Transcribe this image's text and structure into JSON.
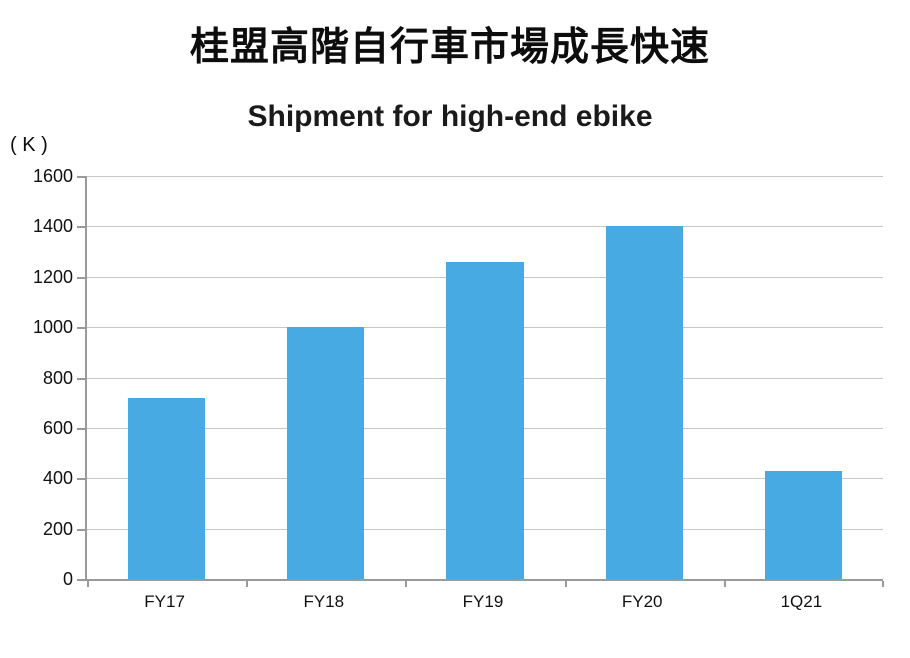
{
  "page": {
    "main_title": "桂盟高階自行車市場成長快速",
    "unit_label": "( K )"
  },
  "chart_data": {
    "type": "bar",
    "title": "Shipment for high-end ebike",
    "categories": [
      "FY17",
      "FY18",
      "FY19",
      "FY20",
      "1Q21"
    ],
    "values": [
      720,
      1000,
      1260,
      1400,
      430
    ],
    "xlabel": "",
    "ylabel": "( K )",
    "ylim": [
      0,
      1600
    ],
    "ytick_step": 200,
    "grid": true,
    "legend": false,
    "bar_color": "#47aae3",
    "gridline_color": "#c7c7c7",
    "axis_color": "#9a9a9a",
    "bar_width_fraction": 0.485
  }
}
